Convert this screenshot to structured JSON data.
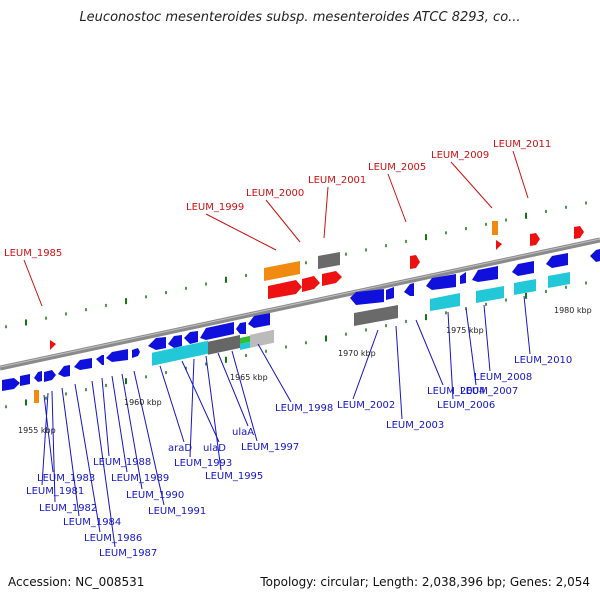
{
  "title": "Leuconostoc mesenteroides subsp. mesenteroides ATCC 8293, co...",
  "footer": {
    "accession": "Accession: NC_008531",
    "summary": "Topology: circular; Length: 2,038,396 bp; Genes: 2,054"
  },
  "scale_labels": [
    "1955 kbp",
    "1960 kbp",
    "1965 kbp",
    "1970 kbp",
    "1975 kbp",
    "1980 kbp"
  ],
  "labels_below": [
    "LEUM_1983",
    "LEUM_1981",
    "LEUM_1982",
    "LEUM_1984",
    "LEUM_1986",
    "LEUM_1987",
    "LEUM_1988",
    "LEUM_1989",
    "LEUM_1990",
    "LEUM_1991",
    "araD",
    "ulaD",
    "LEUM_1993",
    "ulaA",
    "LEUM_1995",
    "LEUM_1997",
    "LEUM_1998",
    "LEUM_2002",
    "LEUM_2003",
    "LEUM_2004",
    "LEUM_2006",
    "LEUM_2007",
    "LEUM_2008",
    "LEUM_2010"
  ],
  "labels_above": [
    "LEUM_1985",
    "LEUM_1999",
    "LEUM_2000",
    "LEUM_2001",
    "LEUM_2005",
    "LEUM_2009",
    "LEUM_2011"
  ],
  "colors": {
    "gene_blue": "#1010dd",
    "gene_cyan": "#22c8d8",
    "gene_gray": "#6a6a6a",
    "gene_red": "#ee1111",
    "gene_orange": "#f08a10",
    "gene_lightgray": "#bbbbbb",
    "gene_green": "#33bb33",
    "tick_green": "#117711",
    "label_blue": "#1515c8",
    "label_red": "#cc1111",
    "backbone": "#888888"
  }
}
